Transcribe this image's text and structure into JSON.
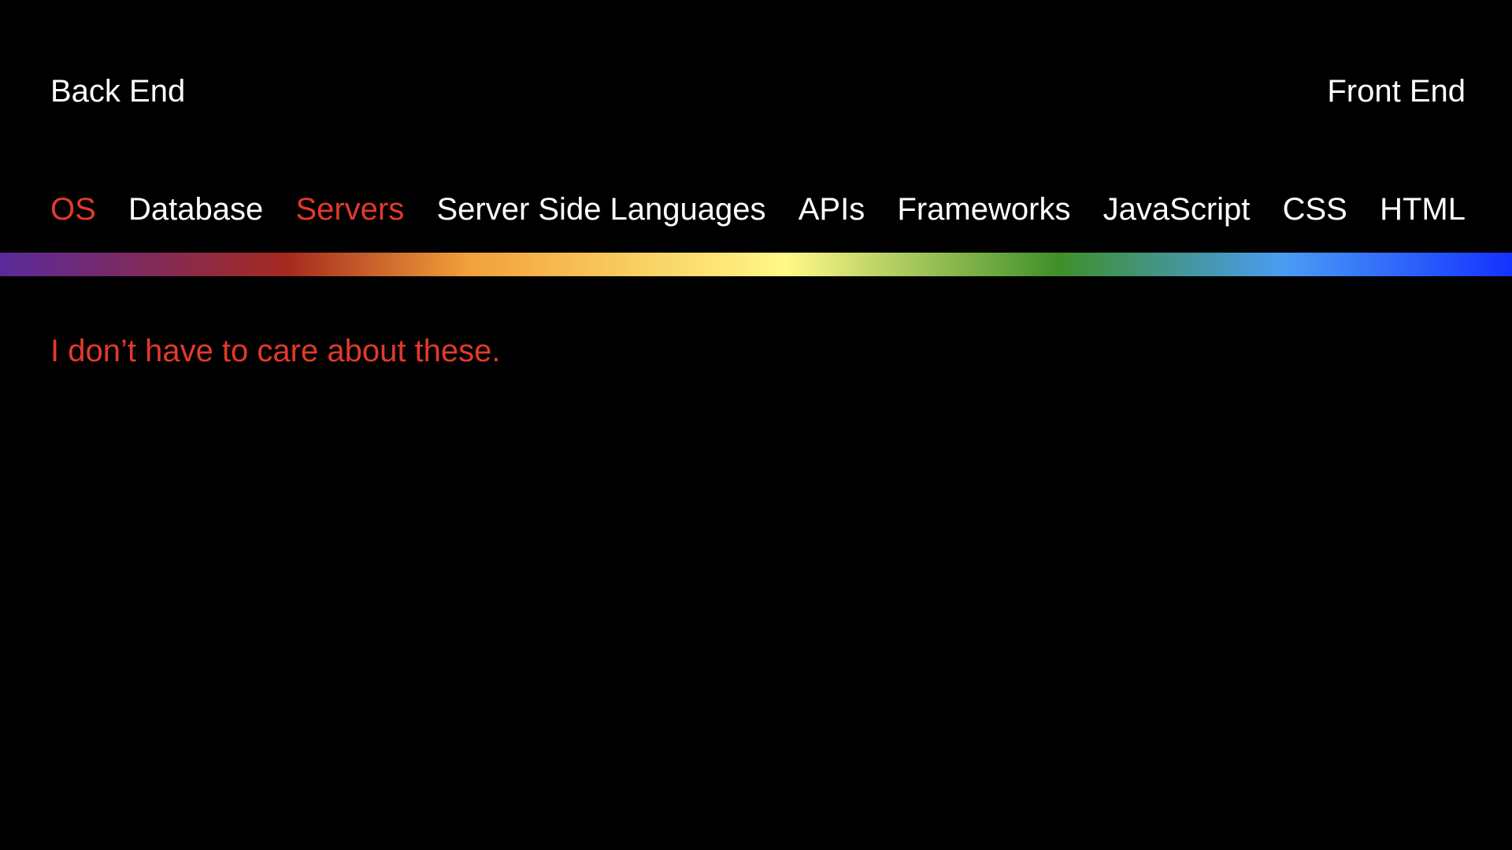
{
  "header": {
    "left_label": "Back End",
    "right_label": "Front End"
  },
  "categories": [
    {
      "label": "OS",
      "highlighted": true
    },
    {
      "label": "Database",
      "highlighted": false
    },
    {
      "label": "Servers",
      "highlighted": true
    },
    {
      "label": "Server Side Languages",
      "highlighted": false
    },
    {
      "label": "APIs",
      "highlighted": false
    },
    {
      "label": "Frameworks",
      "highlighted": false
    },
    {
      "label": "JavaScript",
      "highlighted": false
    },
    {
      "label": "CSS",
      "highlighted": false
    },
    {
      "label": "HTML",
      "highlighted": false
    }
  ],
  "caption": "I don’t have to care about these.",
  "colors": {
    "background": "#000000",
    "text": "#ffffff",
    "highlight": "#e23a2a",
    "spectrum": [
      "#5a2a9a",
      "#a52a1e",
      "#f2a03a",
      "#fff887",
      "#3f8f2a",
      "#4a9cf5",
      "#1531ff"
    ]
  }
}
